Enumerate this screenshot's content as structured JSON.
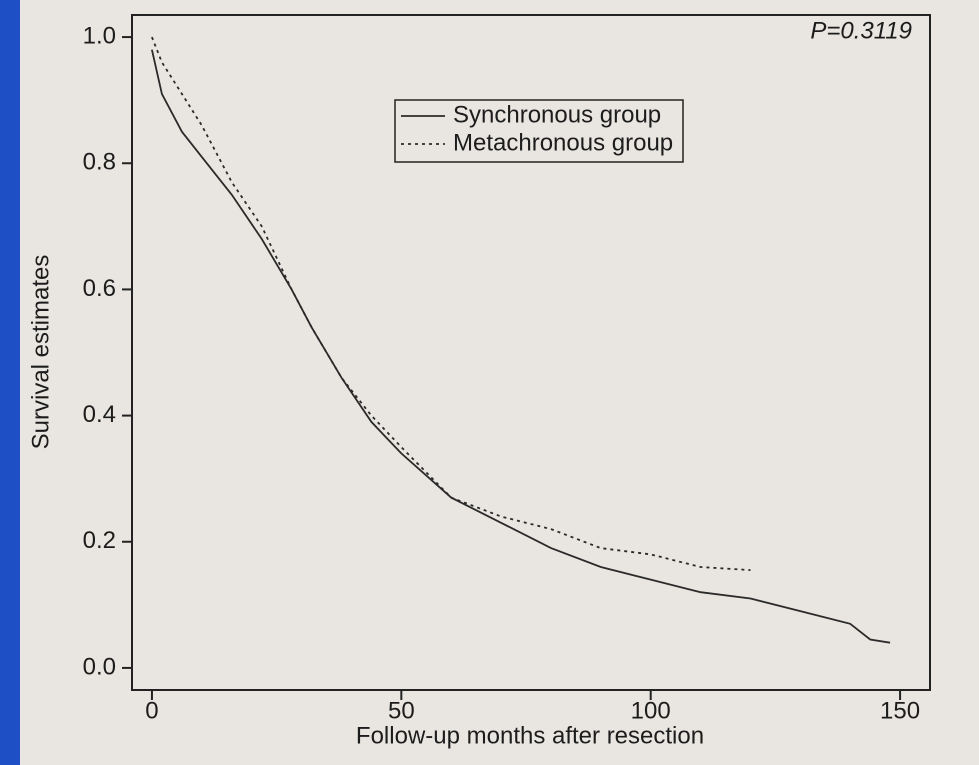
{
  "chart_data": {
    "type": "line",
    "xlabel": "Follow-up months after resection",
    "ylabel": "Survival estimates",
    "annotation": "P=0.3119",
    "x": [
      0,
      2,
      6,
      10,
      16,
      22,
      28,
      32,
      38,
      44,
      50,
      60,
      70,
      80,
      90,
      100,
      110,
      120,
      130,
      140,
      144,
      148
    ],
    "series": [
      {
        "name": "Synchronous group",
        "color": "#2a2a2a",
        "style": "solid",
        "values": [
          0.98,
          0.91,
          0.85,
          0.81,
          0.75,
          0.68,
          0.6,
          0.54,
          0.46,
          0.39,
          0.34,
          0.27,
          0.23,
          0.19,
          0.16,
          0.14,
          0.12,
          0.11,
          0.09,
          0.07,
          0.045,
          0.04
        ]
      },
      {
        "name": "Metachronous group",
        "color": "#2a2a2a",
        "style": "dotted",
        "values": [
          1.0,
          0.96,
          0.91,
          0.86,
          0.77,
          0.7,
          0.6,
          0.54,
          0.46,
          0.4,
          0.35,
          0.27,
          0.24,
          0.22,
          0.19,
          0.18,
          0.16,
          0.155,
          null,
          null,
          null,
          null
        ]
      }
    ],
    "xlim": [
      -4,
      156
    ],
    "ylim": [
      -0.035,
      1.035
    ],
    "xticks": [
      0,
      50,
      100,
      150
    ],
    "yticks": [
      {
        "value": 0,
        "label": "0.0"
      },
      0.2,
      0.4,
      0.6,
      0.8,
      {
        "value": 1,
        "label": "1.0"
      }
    ],
    "legend": "upper center"
  }
}
